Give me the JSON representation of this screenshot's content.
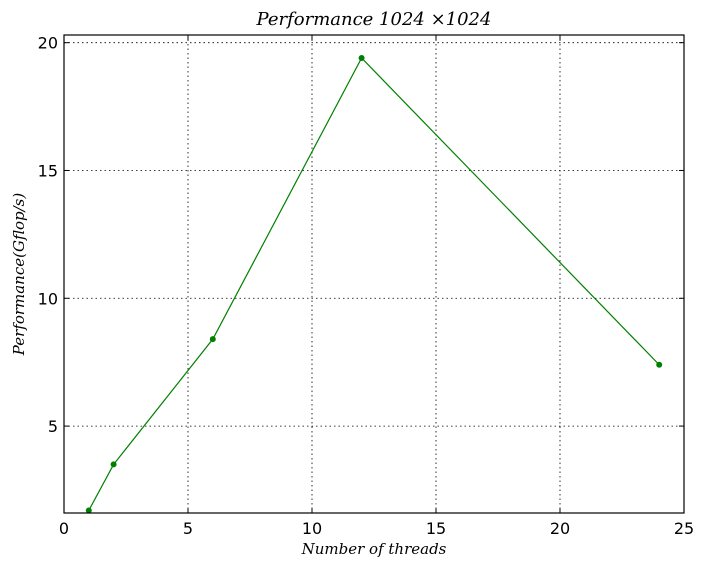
{
  "chart_data": {
    "type": "line",
    "title": "Performance 1024 ×1024",
    "xlabel": "Number of threads",
    "ylabel": "Performance(Gflop/s)",
    "xlim": [
      0,
      25
    ],
    "ylim": [
      1.6,
      20.3
    ],
    "xticks": [
      0,
      5,
      10,
      15,
      20,
      25
    ],
    "yticks": [
      5,
      10,
      15,
      20
    ],
    "grid": true,
    "series": [
      {
        "x": [
          1,
          2,
          6,
          12,
          24
        ],
        "y": [
          1.7,
          3.5,
          8.4,
          19.4,
          7.4
        ],
        "color": "#008000",
        "marker": "circle"
      }
    ]
  }
}
